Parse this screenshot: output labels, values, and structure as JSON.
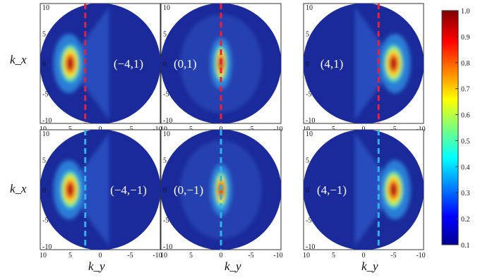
{
  "chart_data": {
    "type": "heatmap",
    "panels": [
      {
        "label": "(−4,1)",
        "peak_ky": 5,
        "peak_kx": 0,
        "cut_ky": 2.5,
        "cut_color": "#e8203a"
      },
      {
        "label": "(0,1)",
        "peak_ky": 0,
        "peak_kx": 0,
        "cut_ky": 0,
        "cut_color": "#e8203a"
      },
      {
        "label": "(4,1)",
        "peak_ky": -5,
        "peak_kx": 0,
        "cut_ky": -2.5,
        "cut_color": "#e8203a"
      },
      {
        "label": "(−4,−1)",
        "peak_ky": 5,
        "peak_kx": 0,
        "cut_ky": 2.5,
        "cut_color": "#2fb3e8"
      },
      {
        "label": "(0,−1)",
        "peak_ky": 0,
        "peak_kx": 0,
        "cut_ky": 0,
        "cut_color": "#2fb3e8"
      },
      {
        "label": "(4,−1)",
        "peak_ky": -5,
        "peak_kx": 0,
        "cut_ky": -2.5,
        "cut_color": "#2fb3e8"
      }
    ],
    "x_ticks": [
      "10",
      "5",
      "0",
      "-5",
      "-10"
    ],
    "y_ticks": [
      "10",
      "5",
      "0",
      "-5",
      "-10"
    ],
    "xlim": [
      10,
      -10
    ],
    "ylim": [
      -10,
      10
    ],
    "xlabel": "k_y",
    "ylabel": "k_x",
    "colorbar": {
      "min": 0.1,
      "max": 1.0,
      "ticks": [
        "1.0",
        "0.9",
        "0.8",
        "0.7",
        "0.6",
        "0.5",
        "0.4",
        "0.3",
        "0.2",
        "0.1"
      ],
      "colormap": "jet"
    }
  }
}
